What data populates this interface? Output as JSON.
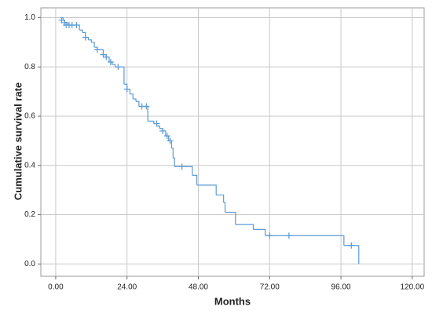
{
  "chart_data": {
    "type": "survival",
    "x_label": "Months",
    "y_label": "Cumulative survival rate",
    "color": "#5b9bd5",
    "grid": true,
    "xlim": [
      -5,
      124
    ],
    "ylim": [
      -0.05,
      1.04
    ],
    "xticks": [
      {
        "value": 0,
        "label": "0.00"
      },
      {
        "value": 24,
        "label": "24.00"
      },
      {
        "value": 48,
        "label": "48.00"
      },
      {
        "value": 72,
        "label": "72.00"
      },
      {
        "value": 96,
        "label": "96.00"
      },
      {
        "value": 120,
        "label": "120.00"
      }
    ],
    "yticks": [
      {
        "value": 0,
        "label": "0.0"
      },
      {
        "value": 0.2,
        "label": "0.2"
      },
      {
        "value": 0.4,
        "label": "0.4"
      },
      {
        "value": 0.6,
        "label": "0.6"
      },
      {
        "value": 0.8,
        "label": "0.8"
      },
      {
        "value": 1,
        "label": "1.0"
      }
    ],
    "x": [
      1.5,
      2.5,
      3,
      4,
      8,
      9,
      10,
      11,
      12,
      13,
      14,
      16,
      17,
      18,
      19,
      20,
      23,
      24,
      25,
      26,
      27,
      28,
      31,
      33,
      34,
      35,
      36,
      37,
      38,
      39,
      39.5,
      40,
      46,
      47.5,
      54,
      56.5,
      57,
      60.5,
      66.5,
      70.5,
      97,
      102
    ],
    "values": [
      1.0,
      0.99,
      0.98,
      0.97,
      0.95,
      0.94,
      0.92,
      0.91,
      0.9,
      0.88,
      0.87,
      0.85,
      0.84,
      0.82,
      0.81,
      0.8,
      0.73,
      0.71,
      0.69,
      0.67,
      0.66,
      0.64,
      0.58,
      0.57,
      0.56,
      0.55,
      0.54,
      0.52,
      0.5,
      0.47,
      0.43,
      0.395,
      0.36,
      0.32,
      0.28,
      0.25,
      0.21,
      0.16,
      0.14,
      0.115,
      0.075,
      0.0
    ],
    "censored": {
      "x": [
        2,
        3,
        3.5,
        4.5,
        5.5,
        7,
        10,
        14,
        16,
        17,
        18.5,
        21,
        24,
        29,
        30.5,
        34,
        36,
        37.5,
        38.5,
        42.5,
        72,
        78.5,
        99.5
      ],
      "values": [
        0.99,
        0.98,
        0.97,
        0.97,
        0.97,
        0.97,
        0.92,
        0.87,
        0.85,
        0.84,
        0.82,
        0.8,
        0.71,
        0.64,
        0.64,
        0.57,
        0.54,
        0.52,
        0.5,
        0.395,
        0.115,
        0.115,
        0.075
      ]
    }
  }
}
